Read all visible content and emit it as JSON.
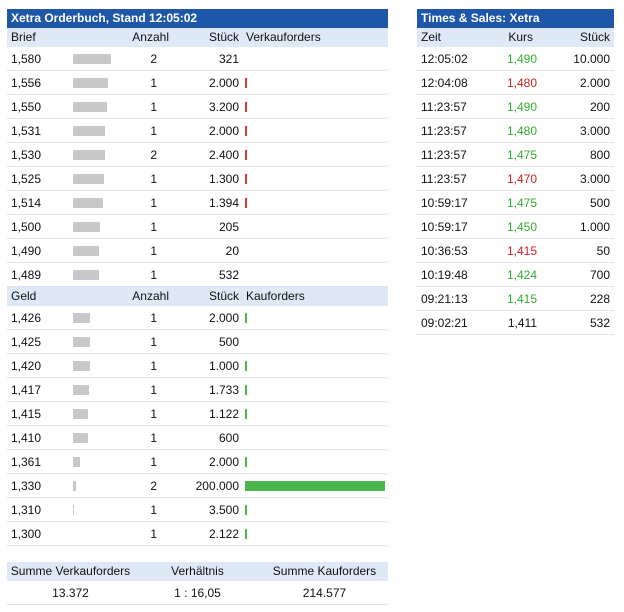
{
  "orderbook": {
    "title": "Xetra Orderbuch, Stand 12:05:02",
    "ask_header": {
      "price": "Brief",
      "count": "Anzahl",
      "qty": "Stück",
      "orders": "Verkauforders"
    },
    "asks": [
      {
        "price": "1,580",
        "count": "2",
        "qty": "321",
        "depth": 0.58,
        "vol": 0.0016
      },
      {
        "price": "1,556",
        "count": "1",
        "qty": "2.000",
        "depth": 0.53,
        "vol": 0.01
      },
      {
        "price": "1,550",
        "count": "1",
        "qty": "3.200",
        "depth": 0.52,
        "vol": 0.016
      },
      {
        "price": "1,531",
        "count": "1",
        "qty": "2.000",
        "depth": 0.48,
        "vol": 0.01
      },
      {
        "price": "1,530",
        "count": "2",
        "qty": "2.400",
        "depth": 0.48,
        "vol": 0.012
      },
      {
        "price": "1,525",
        "count": "1",
        "qty": "1.300",
        "depth": 0.47,
        "vol": 0.0065
      },
      {
        "price": "1,514",
        "count": "1",
        "qty": "1.394",
        "depth": 0.45,
        "vol": 0.007
      },
      {
        "price": "1,500",
        "count": "1",
        "qty": "205",
        "depth": 0.41,
        "vol": 0.001
      },
      {
        "price": "1,490",
        "count": "1",
        "qty": "20",
        "depth": 0.39,
        "vol": 0.0001
      },
      {
        "price": "1,489",
        "count": "1",
        "qty": "532",
        "depth": 0.39,
        "vol": 0.0027
      }
    ],
    "bid_header": {
      "price": "Geld",
      "count": "Anzahl",
      "qty": "Stück",
      "orders": "Kauforders"
    },
    "bids": [
      {
        "price": "1,426",
        "count": "1",
        "qty": "2.000",
        "depth": 0.26,
        "vol": 0.01
      },
      {
        "price": "1,425",
        "count": "1",
        "qty": "500",
        "depth": 0.25,
        "vol": 0.0025
      },
      {
        "price": "1,420",
        "count": "1",
        "qty": "1.000",
        "depth": 0.25,
        "vol": 0.005
      },
      {
        "price": "1,417",
        "count": "1",
        "qty": "1.733",
        "depth": 0.24,
        "vol": 0.0087
      },
      {
        "price": "1,415",
        "count": "1",
        "qty": "1.122",
        "depth": 0.23,
        "vol": 0.0056
      },
      {
        "price": "1,410",
        "count": "1",
        "qty": "600",
        "depth": 0.22,
        "vol": 0.003
      },
      {
        "price": "1,361",
        "count": "1",
        "qty": "2.000",
        "depth": 0.11,
        "vol": 0.01
      },
      {
        "price": "1,330",
        "count": "2",
        "qty": "200.000",
        "depth": 0.05,
        "vol": 1.0
      },
      {
        "price": "1,310",
        "count": "1",
        "qty": "3.500",
        "depth": 0.01,
        "vol": 0.0175
      },
      {
        "price": "1,300",
        "count": "1",
        "qty": "2.122",
        "depth": 0.0,
        "vol": 0.0106
      }
    ]
  },
  "summary": {
    "sell_label": "Summe Verkauforders",
    "ratio_label": "Verhältnis",
    "buy_label": "Summe Kauforders",
    "sell_value": "13.372",
    "ratio_value": "1 : 16,05",
    "buy_value": "214.577"
  },
  "times_sales": {
    "title": "Times & Sales: Xetra",
    "header": {
      "time": "Zeit",
      "price": "Kurs",
      "qty": "Stück"
    },
    "trades": [
      {
        "time": "12:05:02",
        "price": "1,490",
        "qty": "10.000",
        "dir": "up"
      },
      {
        "time": "12:04:08",
        "price": "1,480",
        "qty": "2.000",
        "dir": "down"
      },
      {
        "time": "11:23:57",
        "price": "1,490",
        "qty": "200",
        "dir": "up"
      },
      {
        "time": "11:23:57",
        "price": "1,480",
        "qty": "3.000",
        "dir": "up"
      },
      {
        "time": "11:23:57",
        "price": "1,475",
        "qty": "800",
        "dir": "up"
      },
      {
        "time": "11:23:57",
        "price": "1,470",
        "qty": "3.000",
        "dir": "down"
      },
      {
        "time": "10:59:17",
        "price": "1,475",
        "qty": "500",
        "dir": "up"
      },
      {
        "time": "10:59:17",
        "price": "1,450",
        "qty": "1.000",
        "dir": "up"
      },
      {
        "time": "10:36:53",
        "price": "1,415",
        "qty": "50",
        "dir": "down"
      },
      {
        "time": "10:19:48",
        "price": "1,424",
        "qty": "700",
        "dir": "up"
      },
      {
        "time": "09:21:13",
        "price": "1,415",
        "qty": "228",
        "dir": "up"
      },
      {
        "time": "09:02:21",
        "price": "1,411",
        "qty": "532",
        "dir": "neutral"
      }
    ]
  },
  "colors": {
    "title_bg": "#1f57a8",
    "header_bg": "#dfe8f6",
    "up": "#33aa33",
    "down": "#cc2222",
    "sell_bar": "#d63a3a",
    "buy_bar": "#4db54d",
    "depth_bar": "#c8c8c8"
  }
}
